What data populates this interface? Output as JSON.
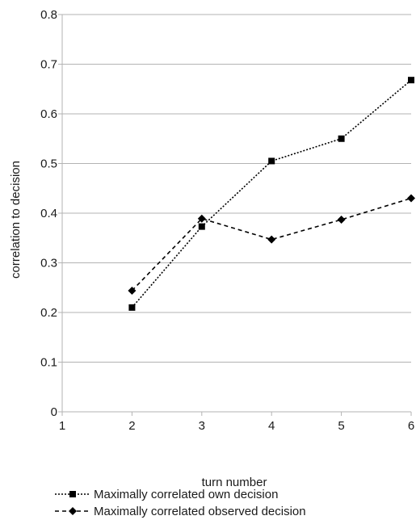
{
  "chart_data": {
    "type": "line",
    "title": "",
    "xlabel": "turn number",
    "ylabel": "correlation to decision",
    "xlim": [
      1,
      6
    ],
    "ylim": [
      0,
      0.8
    ],
    "x_ticks": [
      "1",
      "2",
      "3",
      "4",
      "5",
      "6"
    ],
    "y_ticks": [
      "0",
      "0.1",
      "0.2",
      "0.3",
      "0.4",
      "0.5",
      "0.6",
      "0.7",
      "0.8"
    ],
    "grid": "horizontal",
    "legend_position": "bottom",
    "series": [
      {
        "name": "Maximally correlated own decision",
        "marker": "square",
        "line_style": "dotted",
        "color": "#000000",
        "x": [
          2,
          3,
          4,
          5,
          6
        ],
        "y": [
          0.21,
          0.373,
          0.505,
          0.55,
          0.668
        ]
      },
      {
        "name": "Maximally correlated observed decision",
        "marker": "diamond",
        "line_style": "dashed",
        "color": "#000000",
        "x": [
          2,
          3,
          4,
          5,
          6
        ],
        "y": [
          0.244,
          0.389,
          0.347,
          0.387,
          0.43
        ]
      }
    ]
  }
}
